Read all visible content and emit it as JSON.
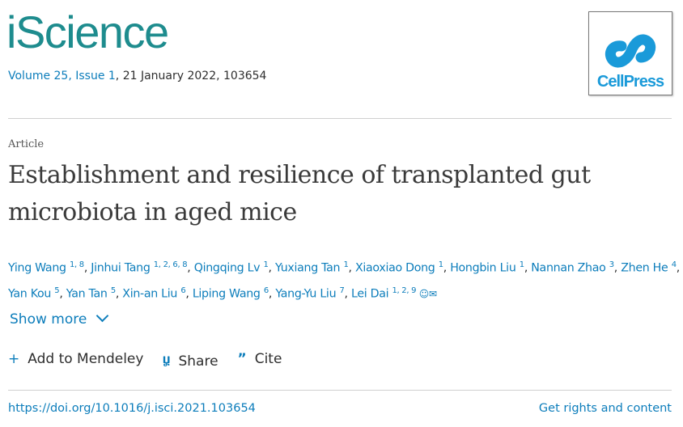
{
  "journal": {
    "name": "iScience",
    "volume_link": "Volume 25, Issue 1",
    "date_info": ", 21 January 2022, 103654",
    "publisher_logo": "CellPress"
  },
  "article": {
    "type": "Article",
    "title": "Establishment and resilience of transplanted gut microbiota in aged mice"
  },
  "authors": [
    {
      "name": "Ying Wang",
      "aff": "1, 8"
    },
    {
      "name": "Jinhui Tang",
      "aff": "1, 2, 6, 8"
    },
    {
      "name": "Qingqing Lv",
      "aff": "1"
    },
    {
      "name": "Yuxiang Tan",
      "aff": "1"
    },
    {
      "name": "Xiaoxiao Dong",
      "aff": "1"
    },
    {
      "name": "Hongbin Liu",
      "aff": "1"
    },
    {
      "name": "Nannan Zhao",
      "aff": "3"
    },
    {
      "name": "Zhen He",
      "aff": "4"
    },
    {
      "name": "Yan Kou",
      "aff": "5"
    },
    {
      "name": "Yan Tan",
      "aff": "5"
    },
    {
      "name": "Xin-an Liu",
      "aff": "6"
    },
    {
      "name": "Liping Wang",
      "aff": "6"
    },
    {
      "name": "Yang-Yu Liu",
      "aff": "7"
    },
    {
      "name": "Lei Dai",
      "aff": "1, 2, 9"
    }
  ],
  "show_more": "Show more",
  "actions": {
    "mendeley": "Add to Mendeley",
    "share": "Share",
    "cite": "Cite"
  },
  "doi": "https://doi.org/10.1016/j.isci.2021.103654",
  "rights": "Get rights and content",
  "colors": {
    "brand": "#1e8c8e",
    "link": "#0c7dbb",
    "cellpress": "#1a9ad9"
  }
}
